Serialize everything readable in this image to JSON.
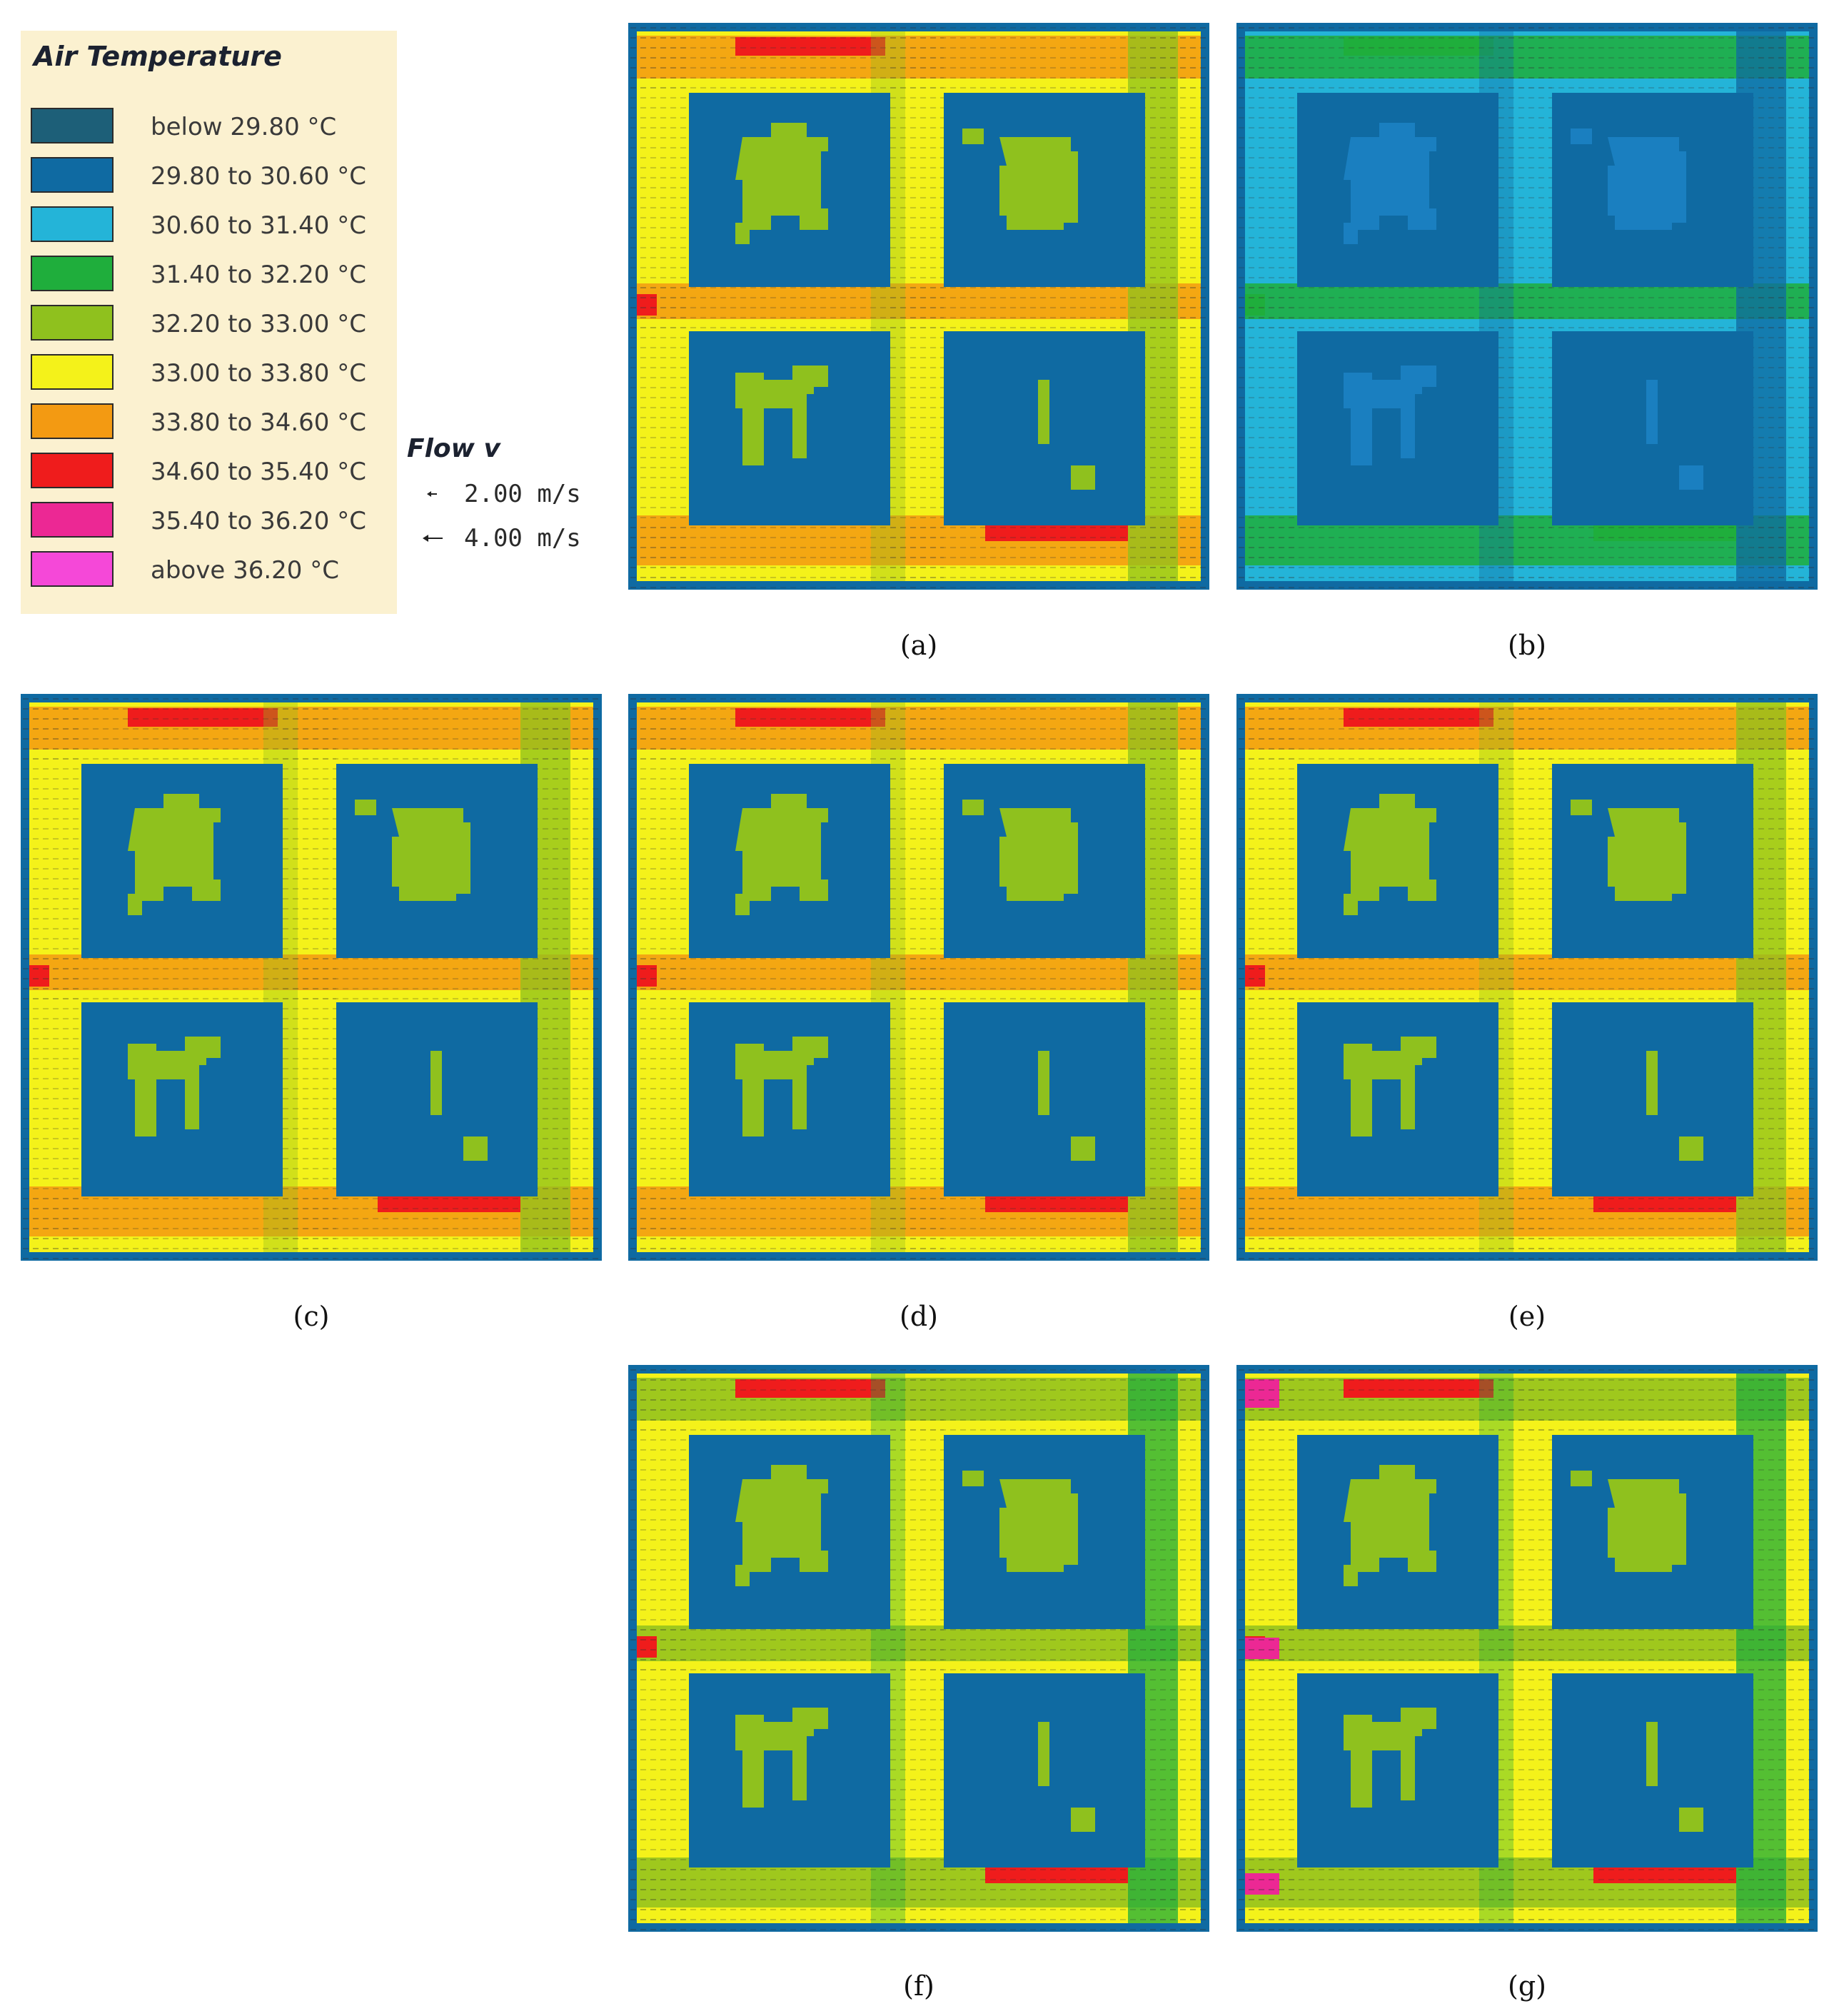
{
  "legend": {
    "title": "Air Temperature",
    "items": [
      {
        "label": "below 29.80 °C",
        "color": "#1d5f78"
      },
      {
        "label": "29.80 to 30.60 °C",
        "color": "#0f6aa2"
      },
      {
        "label": "30.60 to 31.40 °C",
        "color": "#24b4d8"
      },
      {
        "label": "31.40 to 32.20 °C",
        "color": "#1fae3c"
      },
      {
        "label": "32.20 to 33.00 °C",
        "color": "#8fc11e"
      },
      {
        "label": "33.00 to 33.80 °C",
        "color": "#f4f21a"
      },
      {
        "label": "33.80 to 34.60 °C",
        "color": "#f39a12"
      },
      {
        "label": "34.60 to 35.40 °C",
        "color": "#ef1c1c"
      },
      {
        "label": "35.40 to 36.20 °C",
        "color": "#ec2894"
      },
      {
        "label": "above 36.20 °C",
        "color": "#f548d8"
      }
    ]
  },
  "flow": {
    "title": "Flow v",
    "items": [
      {
        "label": "2.00 m/s"
      },
      {
        "label": "4.00 m/s"
      }
    ]
  },
  "panels": [
    {
      "id": "a",
      "caption": "(a)",
      "scheme": "warm"
    },
    {
      "id": "b",
      "caption": "(b)",
      "scheme": "cool"
    },
    {
      "id": "c",
      "caption": "(c)",
      "scheme": "warm"
    },
    {
      "id": "d",
      "caption": "(d)",
      "scheme": "warm"
    },
    {
      "id": "e",
      "caption": "(e)",
      "scheme": "warm"
    },
    {
      "id": "f",
      "caption": "(f)",
      "scheme": "green"
    },
    {
      "id": "g",
      "caption": "(g)",
      "scheme": "hot"
    }
  ]
}
